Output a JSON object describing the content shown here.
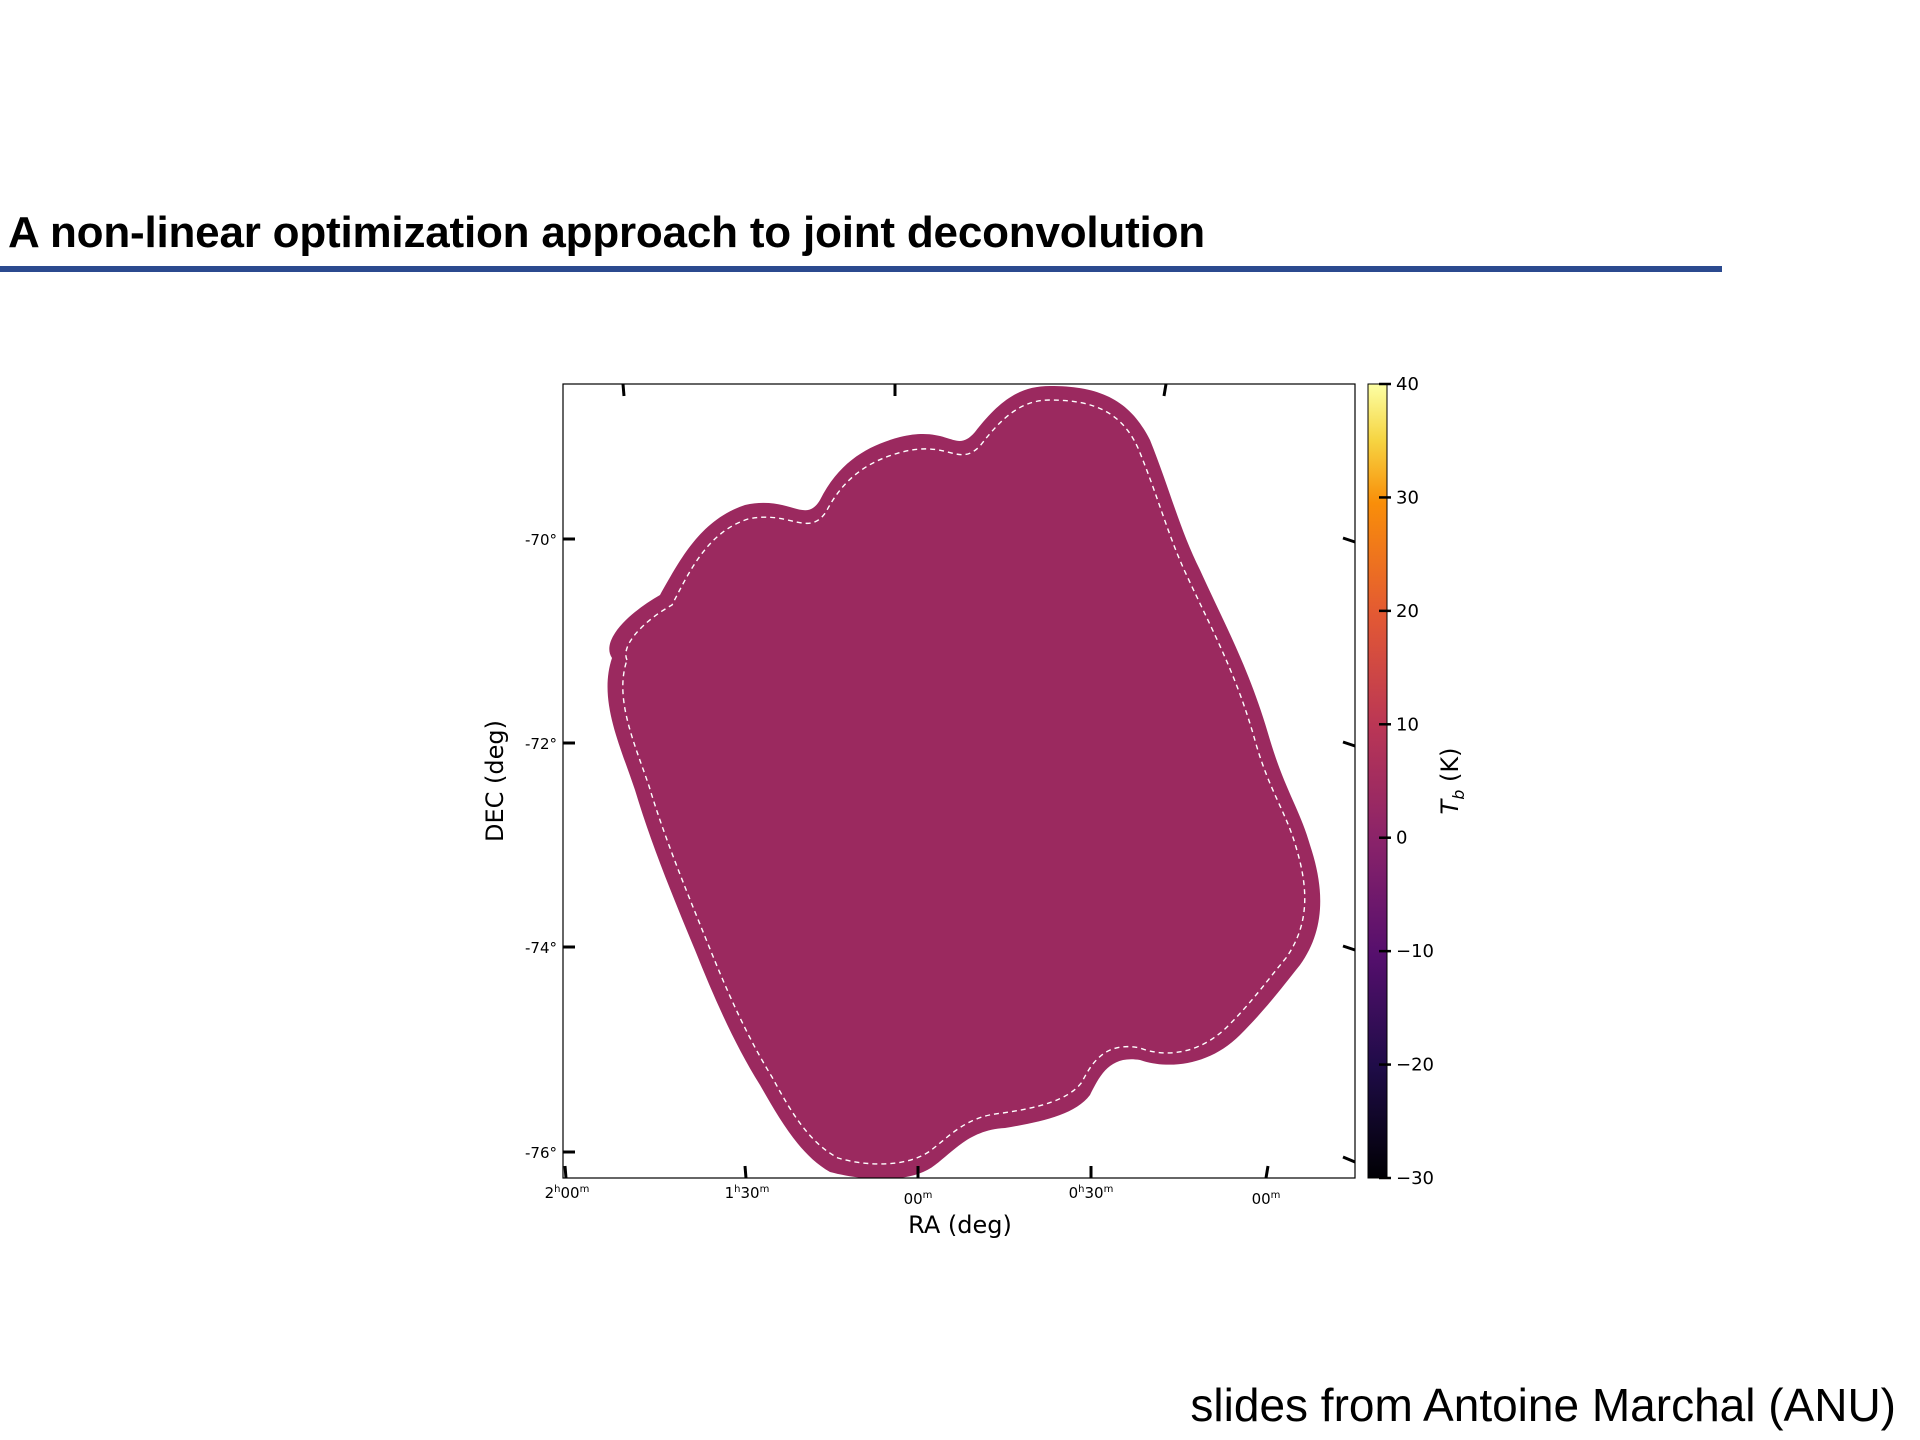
{
  "slide": {
    "title": "A non-linear optimization approach to joint deconvolution",
    "credit": "slides from Antoine Marchal (ANU)",
    "accent_color": "#2b4a8f"
  },
  "chart_data": {
    "type": "heatmap",
    "xlabel": "RA (deg)",
    "ylabel": "DEC (deg)",
    "colorbar_label": "T_b (K)",
    "colorbar_label_main": "T",
    "colorbar_label_sub": "b",
    "colorbar_label_unit": " (K)",
    "colormap": "inferno",
    "fill_color": "#9b295f",
    "x_ticks": [
      "2h00m",
      "1h30m",
      "00m",
      "0h30m",
      "00m"
    ],
    "x_tick_labels": [
      {
        "main": "2",
        "sup1": "h",
        "mid": "00",
        "sup2": "m"
      },
      {
        "main": "1",
        "sup1": "h",
        "mid": "30",
        "sup2": "m"
      },
      {
        "main": "",
        "sup1": "",
        "mid": "00",
        "sup2": "m"
      },
      {
        "main": "0",
        "sup1": "h",
        "mid": "30",
        "sup2": "m"
      },
      {
        "main": "",
        "sup1": "",
        "mid": "00",
        "sup2": "m"
      }
    ],
    "y_ticks": [
      "-70°",
      "-72°",
      "-74°",
      "-76°"
    ],
    "colorbar_ticks": [
      40,
      30,
      20,
      10,
      0,
      -10,
      -20,
      -30
    ],
    "colorbar_tick_labels": [
      "40",
      "30",
      "20",
      "10",
      "0",
      "−10",
      "−20",
      "−30"
    ],
    "colorbar_range": [
      -30,
      40
    ],
    "map_value": 0,
    "mask_contour": "dashed white"
  }
}
